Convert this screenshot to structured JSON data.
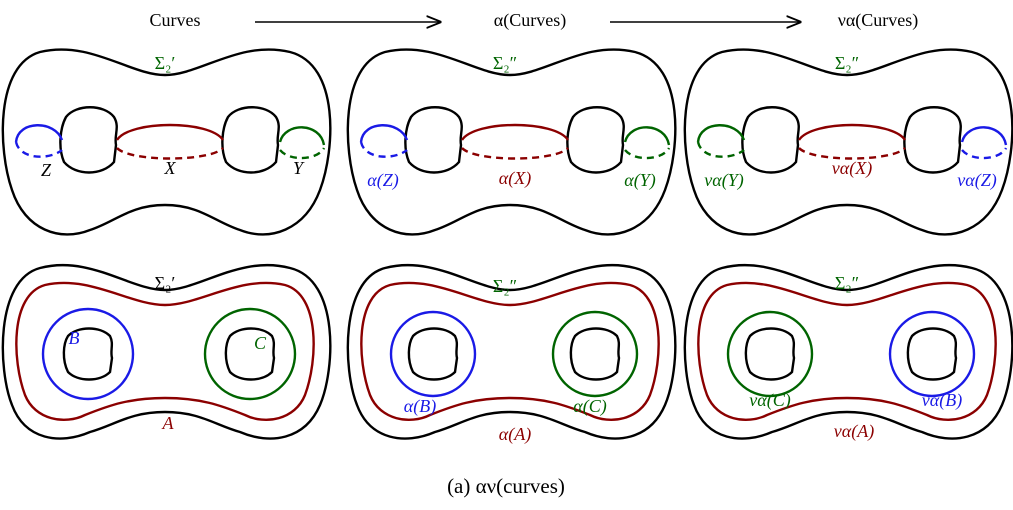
{
  "header": {
    "labels": [
      "Curves",
      "α(Curves)",
      "να(Curves)"
    ]
  },
  "panels": [
    {
      "surface_label": "Σ₂′",
      "curve_labels": [
        "Z",
        "X",
        "Y"
      ]
    },
    {
      "surface_label": "Σ₂″",
      "curve_labels": [
        "α(Z)",
        "α(X)",
        "α(Y)"
      ]
    },
    {
      "surface_label": "Σ₂″",
      "curve_labels": [
        "να(Y)",
        "να(X)",
        "να(Z)"
      ]
    },
    {
      "surface_label": "Σ₂′",
      "curve_labels": [
        "B",
        "C",
        "A"
      ]
    },
    {
      "surface_label": "Σ₂″",
      "curve_labels": [
        "α(B)",
        "α(C)",
        "α(A)"
      ]
    },
    {
      "surface_label": "Σ₂″",
      "curve_labels": [
        "να(C)",
        "να(B)",
        "να(A)"
      ]
    }
  ],
  "caption": "(a) αν(curves)"
}
